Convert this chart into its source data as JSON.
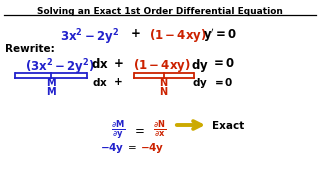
{
  "title": "Solving an Exact 1st Order Differential Equation",
  "bg_color": "#ffffff",
  "blue": "#2222cc",
  "red": "#cc2200",
  "black": "#000000",
  "gold": "#ccaa00",
  "figsize": [
    3.2,
    1.8
  ],
  "dpi": 100
}
